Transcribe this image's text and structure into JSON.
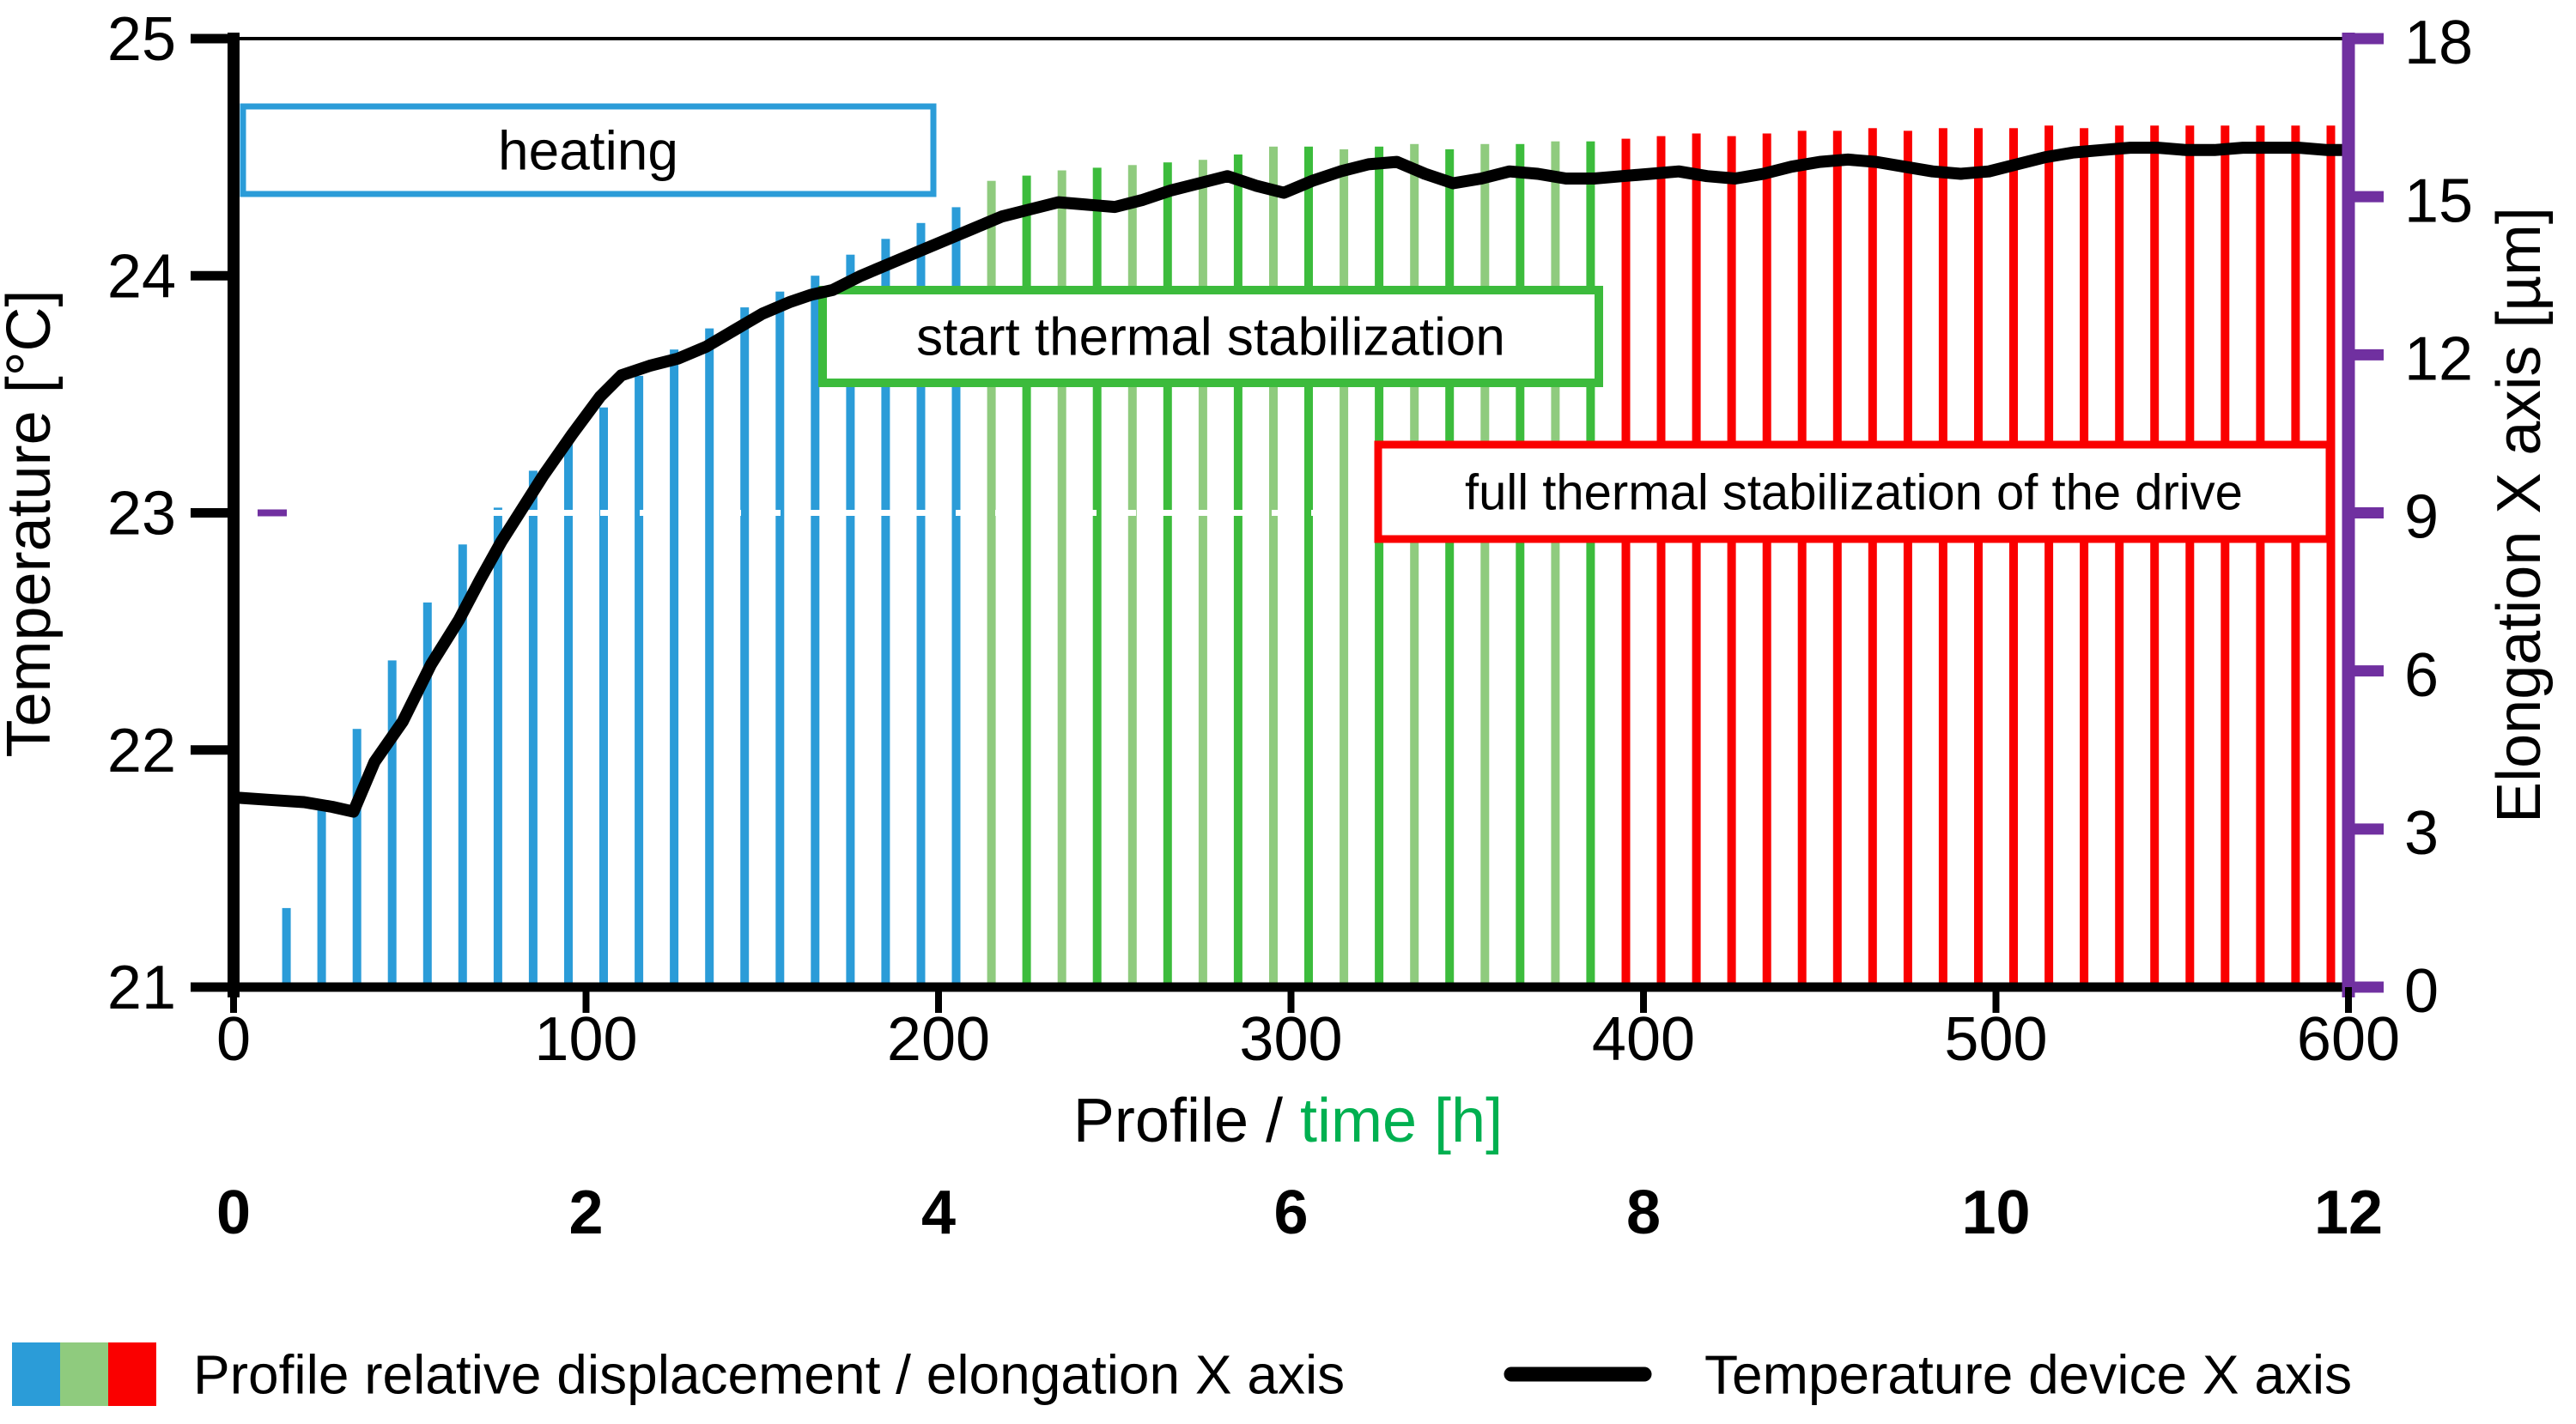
{
  "chart_data": {
    "type": "bar+line dual-axis combo",
    "x_axis": {
      "title_black": "Profile / ",
      "title_green": "time [h]",
      "profile_ticks": [
        "0",
        "100",
        "200",
        "300",
        "400",
        "500",
        "600"
      ],
      "time_ticks": [
        "0",
        "2",
        "4",
        "6",
        "8",
        "10",
        "12"
      ],
      "profile_range": [
        0,
        600
      ],
      "time_range": [
        0,
        12
      ]
    },
    "y_left": {
      "label": "Temperature [°C]",
      "ticks": [
        "21",
        "22",
        "23",
        "24",
        "25"
      ],
      "range": [
        21,
        25
      ]
    },
    "y_right": {
      "label": "Elongation X axis [µm]",
      "ticks": [
        "0",
        "3",
        "6",
        "9",
        "12",
        "15",
        "18"
      ],
      "range": [
        0,
        18
      ]
    },
    "annotations": [
      {
        "text": "heating",
        "border_color": "#2B9CD8"
      },
      {
        "text": "start thermal stabilization",
        "border_color": "#3CBB3C"
      },
      {
        "text": "full thermal stabilization of the drive",
        "border_color": "#FA0000"
      }
    ],
    "dashed_guide": {
      "at_temperature": 23,
      "at_elongation": 9,
      "color": "#ffffff",
      "accent_color": "#7030A0"
    },
    "bars": {
      "units": "µm (right axis)",
      "bar_step_profile_units": 10,
      "series": [
        {
          "phase": "heating",
          "color": "#2B9CD8",
          "points": [
            [
              15,
              1.5
            ],
            [
              25,
              3.4
            ],
            [
              35,
              4.9
            ],
            [
              45,
              6.2
            ],
            [
              55,
              7.3
            ],
            [
              65,
              8.4
            ],
            [
              75,
              9.1
            ],
            [
              85,
              9.8
            ],
            [
              95,
              10.4
            ],
            [
              105,
              11.0
            ],
            [
              115,
              11.6
            ],
            [
              125,
              12.1
            ],
            [
              135,
              12.5
            ],
            [
              145,
              12.9
            ],
            [
              155,
              13.2
            ],
            [
              165,
              13.5
            ],
            [
              175,
              13.9
            ],
            [
              185,
              14.2
            ],
            [
              195,
              14.5
            ],
            [
              205,
              14.8
            ]
          ]
        },
        {
          "phase": "start thermal stabilization",
          "colors": [
            "#8FCB7E",
            "#3CBC3C"
          ],
          "points": [
            [
              215,
              15.3
            ],
            [
              225,
              15.4
            ],
            [
              235,
              15.5
            ],
            [
              245,
              15.55
            ],
            [
              255,
              15.6
            ],
            [
              265,
              15.65
            ],
            [
              275,
              15.7
            ],
            [
              285,
              15.8
            ],
            [
              295,
              15.95
            ],
            [
              305,
              15.95
            ],
            [
              315,
              15.9
            ],
            [
              325,
              15.95
            ],
            [
              335,
              16.0
            ],
            [
              345,
              15.9
            ],
            [
              355,
              16.0
            ],
            [
              365,
              16.0
            ],
            [
              375,
              16.05
            ],
            [
              385,
              16.05
            ]
          ]
        },
        {
          "phase": "full thermal stabilization of the drive",
          "color": "#FA0000",
          "points": [
            [
              395,
              16.1
            ],
            [
              405,
              16.15
            ],
            [
              415,
              16.2
            ],
            [
              425,
              16.15
            ],
            [
              435,
              16.2
            ],
            [
              445,
              16.25
            ],
            [
              455,
              16.25
            ],
            [
              465,
              16.3
            ],
            [
              475,
              16.25
            ],
            [
              485,
              16.3
            ],
            [
              495,
              16.3
            ],
            [
              505,
              16.3
            ],
            [
              515,
              16.35
            ],
            [
              525,
              16.3
            ],
            [
              535,
              16.35
            ],
            [
              545,
              16.35
            ],
            [
              555,
              16.35
            ],
            [
              565,
              16.35
            ],
            [
              575,
              16.35
            ],
            [
              585,
              16.35
            ],
            [
              595,
              16.35
            ]
          ]
        }
      ]
    },
    "temperature_curve": {
      "name": "Temperature device X axis",
      "color": "#000000",
      "points": [
        [
          0,
          21.8
        ],
        [
          10,
          21.79
        ],
        [
          20,
          21.78
        ],
        [
          28,
          21.76
        ],
        [
          34,
          21.74
        ],
        [
          40,
          21.95
        ],
        [
          48,
          22.12
        ],
        [
          56,
          22.36
        ],
        [
          64,
          22.55
        ],
        [
          70,
          22.72
        ],
        [
          76,
          22.88
        ],
        [
          82,
          23.02
        ],
        [
          88,
          23.16
        ],
        [
          96,
          23.33
        ],
        [
          104,
          23.49
        ],
        [
          110,
          23.58
        ],
        [
          118,
          23.62
        ],
        [
          126,
          23.65
        ],
        [
          134,
          23.7
        ],
        [
          142,
          23.77
        ],
        [
          150,
          23.84
        ],
        [
          158,
          23.89
        ],
        [
          164,
          23.92
        ],
        [
          170,
          23.94
        ],
        [
          178,
          24.0
        ],
        [
          186,
          24.05
        ],
        [
          194,
          24.1
        ],
        [
          202,
          24.15
        ],
        [
          210,
          24.2
        ],
        [
          218,
          24.25
        ],
        [
          226,
          24.28
        ],
        [
          234,
          24.31
        ],
        [
          242,
          24.3
        ],
        [
          250,
          24.29
        ],
        [
          258,
          24.32
        ],
        [
          266,
          24.36
        ],
        [
          274,
          24.39
        ],
        [
          282,
          24.42
        ],
        [
          290,
          24.38
        ],
        [
          298,
          24.35
        ],
        [
          306,
          24.4
        ],
        [
          314,
          24.44
        ],
        [
          322,
          24.47
        ],
        [
          330,
          24.48
        ],
        [
          338,
          24.43
        ],
        [
          346,
          24.39
        ],
        [
          354,
          24.41
        ],
        [
          362,
          24.44
        ],
        [
          370,
          24.43
        ],
        [
          378,
          24.41
        ],
        [
          386,
          24.41
        ],
        [
          394,
          24.42
        ],
        [
          402,
          24.43
        ],
        [
          410,
          24.44
        ],
        [
          418,
          24.42
        ],
        [
          426,
          24.41
        ],
        [
          434,
          24.43
        ],
        [
          442,
          24.46
        ],
        [
          450,
          24.48
        ],
        [
          458,
          24.49
        ],
        [
          466,
          24.48
        ],
        [
          474,
          24.46
        ],
        [
          482,
          24.44
        ],
        [
          490,
          24.43
        ],
        [
          498,
          24.44
        ],
        [
          506,
          24.47
        ],
        [
          514,
          24.5
        ],
        [
          522,
          24.52
        ],
        [
          530,
          24.53
        ],
        [
          538,
          24.54
        ],
        [
          546,
          24.54
        ],
        [
          554,
          24.53
        ],
        [
          562,
          24.53
        ],
        [
          570,
          24.54
        ],
        [
          578,
          24.54
        ],
        [
          586,
          24.54
        ],
        [
          594,
          24.53
        ],
        [
          600,
          24.53
        ]
      ]
    },
    "legend": {
      "bars_label": "Profile relative displacement / elongation X axis",
      "bars_swatch_colors": [
        "#2B9CD8",
        "#8FCB7E",
        "#FA0000"
      ],
      "line_label": "Temperature device X axis",
      "line_color": "#000000"
    },
    "colors": {
      "blue": "#2B9CD8",
      "green_light": "#8FCB7E",
      "green_dark": "#3CBC3C",
      "green_text": "#00B050",
      "red": "#FA0000",
      "purple": "#7030A0",
      "black": "#000000"
    }
  }
}
